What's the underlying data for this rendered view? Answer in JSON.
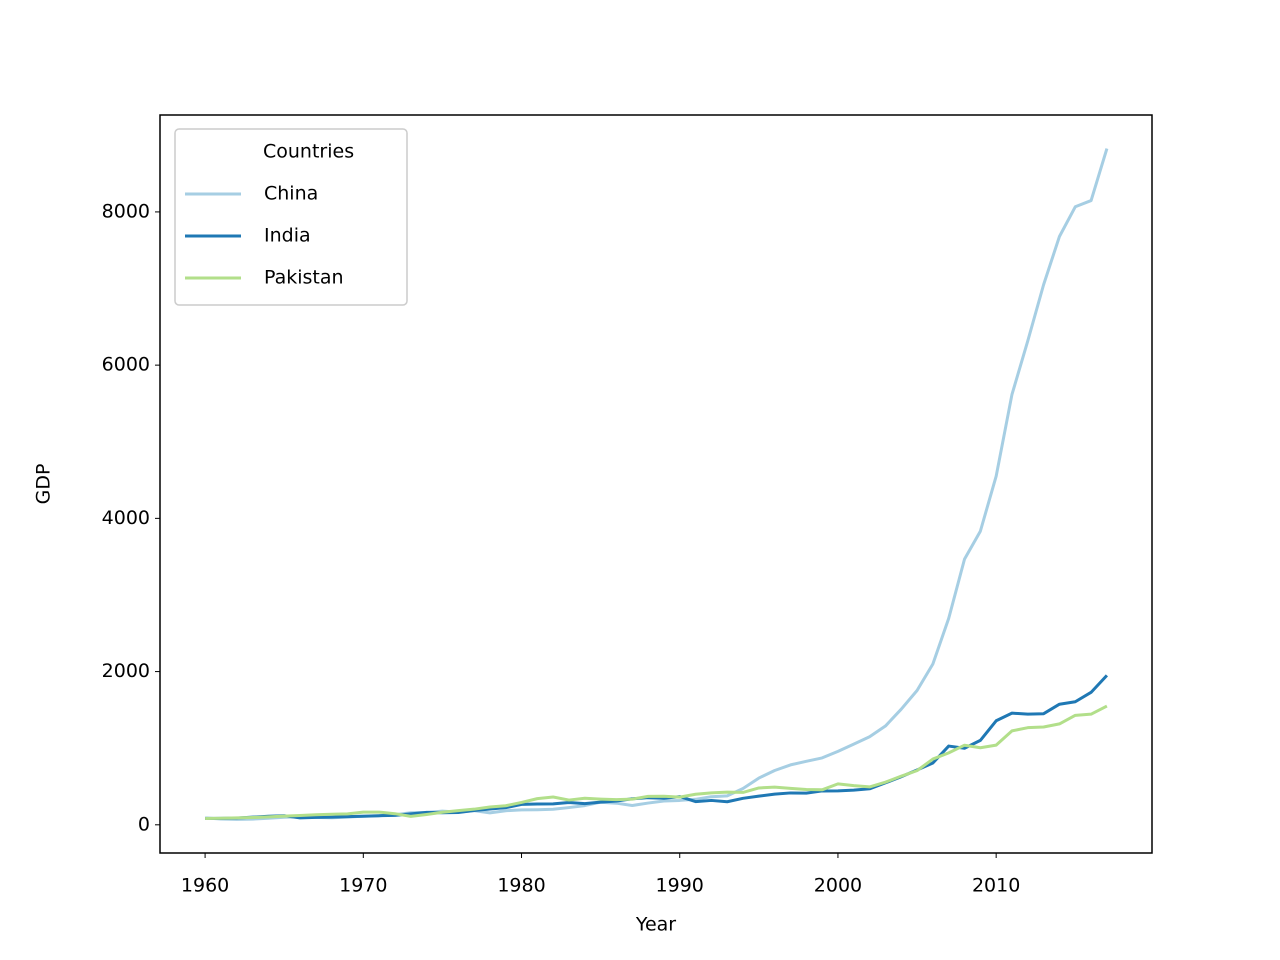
{
  "chart_data": {
    "type": "line",
    "x_label": "Year",
    "y_label": "GDP",
    "x": [
      1960,
      1961,
      1962,
      1963,
      1964,
      1965,
      1966,
      1967,
      1968,
      1969,
      1970,
      1971,
      1972,
      1973,
      1974,
      1975,
      1976,
      1977,
      1978,
      1979,
      1980,
      1981,
      1982,
      1983,
      1984,
      1985,
      1986,
      1987,
      1988,
      1989,
      1990,
      1991,
      1992,
      1993,
      1994,
      1995,
      1996,
      1997,
      1998,
      1999,
      2000,
      2001,
      2002,
      2003,
      2004,
      2005,
      2006,
      2007,
      2008,
      2009,
      2010,
      2011,
      2012,
      2013,
      2014,
      2015,
      2016,
      2017
    ],
    "series": [
      {
        "name": "China",
        "color": "#a6cee3",
        "values": [
          90,
          76,
          71,
          74,
          86,
          99,
          104,
          97,
          92,
          100,
          113,
          119,
          132,
          157,
          160,
          178,
          165,
          185,
          156,
          184,
          195,
          197,
          203,
          225,
          251,
          295,
          282,
          252,
          284,
          311,
          318,
          333,
          367,
          377,
          474,
          610,
          709,
          782,
          829,
          873,
          959,
          1053,
          1149,
          1289,
          1509,
          1753,
          2099,
          2694,
          3468,
          3832,
          4550,
          5618,
          6317,
          7051,
          7679,
          8067,
          8148,
          8827
        ]
      },
      {
        "name": "India",
        "color": "#1f78b4",
        "values": [
          82,
          84,
          88,
          100,
          112,
          119,
          90,
          97,
          100,
          107,
          112,
          119,
          123,
          143,
          163,
          158,
          161,
          186,
          206,
          224,
          267,
          271,
          274,
          291,
          277,
          296,
          311,
          340,
          354,
          346,
          368,
          303,
          318,
          301,
          346,
          374,
          400,
          416,
          413,
          442,
          443,
          452,
          470,
          547,
          628,
          715,
          807,
          1028,
          999,
          1102,
          1358,
          1458,
          1444,
          1450,
          1574,
          1606,
          1729,
          1950
        ]
      },
      {
        "name": "Pakistan",
        "color": "#b2df8a",
        "values": [
          83,
          86,
          90,
          95,
          104,
          113,
          122,
          132,
          137,
          143,
          165,
          166,
          145,
          110,
          135,
          164,
          185,
          204,
          233,
          249,
          292,
          342,
          363,
          323,
          346,
          335,
          328,
          335,
          371,
          372,
          361,
          399,
          417,
          426,
          423,
          481,
          492,
          476,
          461,
          457,
          534,
          511,
          495,
          556,
          635,
          707,
          858,
          939,
          1039,
          1006,
          1040,
          1226,
          1268,
          1277,
          1317,
          1429,
          1444,
          1550
        ]
      }
    ],
    "legend_title": "Countries",
    "legend": "upper left",
    "xlim": [
      1957.15,
      2019.85
    ],
    "xticks": [
      1960,
      1970,
      1980,
      1990,
      2000,
      2010
    ],
    "ylim": [
      -368,
      9265
    ],
    "yticks": [
      0,
      2000,
      4000,
      6000,
      8000
    ],
    "grid": false
  }
}
